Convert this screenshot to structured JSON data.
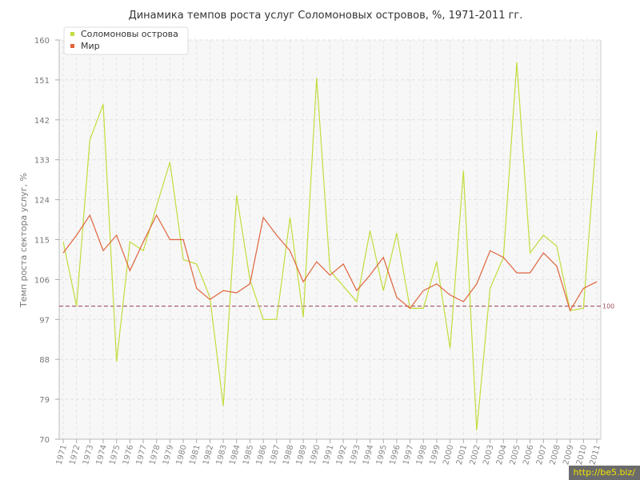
{
  "chart_data": {
    "type": "line",
    "title": "Динамика темпов роста услуг Соломоновых островов, %, 1971-2011 гг.",
    "ylabel": "Темп роста сектора услуг, %",
    "xlabel": "",
    "ylim": [
      70,
      160
    ],
    "yticks": [
      "70",
      "79",
      "88",
      "97",
      "106",
      "115",
      "124",
      "133",
      "142",
      "151",
      "160"
    ],
    "x": [
      "1971",
      "1972",
      "1973",
      "1974",
      "1975",
      "1976",
      "1977",
      "1978",
      "1979",
      "1980",
      "1981",
      "1982",
      "1983",
      "1984",
      "1985",
      "1986",
      "1987",
      "1988",
      "1989",
      "1990",
      "1991",
      "1992",
      "1993",
      "1994",
      "1995",
      "1996",
      "1997",
      "1998",
      "1999",
      "2000",
      "2001",
      "2002",
      "2003",
      "2004",
      "2005",
      "2006",
      "2007",
      "2008",
      "2009",
      "2010",
      "2011"
    ],
    "series": [
      {
        "name": "Соломоновы острова",
        "color": "#c3dc3c",
        "values": [
          114.5,
          100,
          137.5,
          145.5,
          87.5,
          114.5,
          112.5,
          122.5,
          132.5,
          110.5,
          109.5,
          102,
          77.5,
          125,
          106,
          97,
          97,
          120,
          97.5,
          151.5,
          108,
          104.5,
          101,
          117,
          103.5,
          116.5,
          99.5,
          99.5,
          110,
          90.5,
          130.5,
          72,
          104,
          111,
          155,
          112,
          116,
          113.5,
          99,
          99.5,
          139.5
        ]
      },
      {
        "name": "Мир",
        "color": "#e0643c",
        "values": [
          112,
          116,
          120.5,
          112.5,
          116,
          108,
          114.5,
          120.5,
          115,
          115,
          104,
          101.5,
          103.5,
          103,
          105,
          120,
          116,
          112.5,
          105.5,
          110,
          107,
          109.5,
          103.5,
          107,
          111,
          102,
          99.5,
          103.5,
          105,
          102.5,
          101,
          105,
          112.5,
          111,
          107.5,
          107.5,
          112,
          109,
          99,
          104,
          105.5
        ]
      }
    ],
    "reference_line": {
      "value": 100,
      "label": "100",
      "color": "#a05060"
    },
    "grid": true,
    "legend": "top-left"
  },
  "watermark": "http://be5.biz/"
}
